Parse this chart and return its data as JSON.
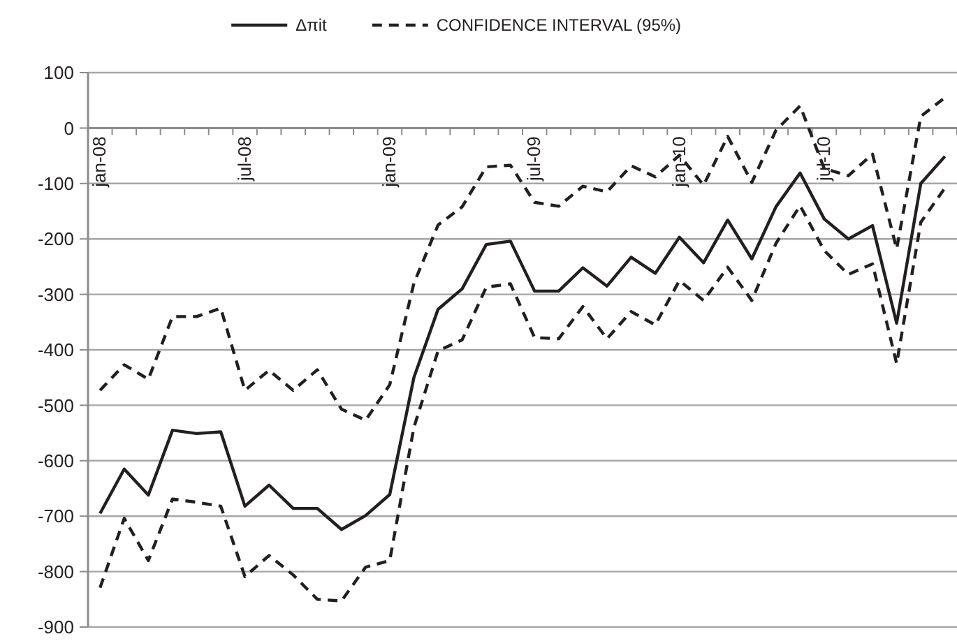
{
  "chart_data": {
    "type": "line",
    "categories": [
      "jan-08",
      null,
      null,
      null,
      null,
      null,
      "jul-08",
      null,
      null,
      null,
      null,
      null,
      "jan-09",
      null,
      null,
      null,
      null,
      null,
      "jul-09",
      null,
      null,
      null,
      null,
      null,
      "jan-10",
      null,
      null,
      null,
      null,
      null,
      "jul-10",
      null,
      null,
      null,
      null,
      null
    ],
    "series": [
      {
        "name": "Δπit",
        "color": "#231f20",
        "line_style": "solid",
        "values": [
          -695,
          -615,
          -662,
          -545,
          -551,
          -548,
          -682,
          -644,
          -686,
          -686,
          -724,
          -699,
          -661,
          -450,
          -327,
          -290,
          -210,
          -204,
          -294,
          -294,
          -252,
          -285,
          -233,
          -262,
          -197,
          -243,
          -166,
          -236,
          -142,
          -81,
          -164,
          -200,
          -176,
          -352,
          -100,
          -51
        ]
      },
      {
        "name": "CONFIDENCE INTERVAL (95%)",
        "color": "#231f20",
        "line_style": "dashed",
        "values": [
          -473,
          -427,
          -453,
          -340,
          -340,
          -325,
          -473,
          -437,
          -473,
          -436,
          -507,
          -527,
          -463,
          -280,
          -175,
          -142,
          -70,
          -67,
          -134,
          -141,
          -105,
          -115,
          -68,
          -88,
          -49,
          -103,
          -15,
          -98,
          -4,
          40,
          -73,
          -86,
          -47,
          -218,
          21,
          55
        ]
      },
      {
        "color": "#231f20",
        "line_style": "dashed",
        "values": [
          -829,
          -704,
          -780,
          -669,
          -675,
          -682,
          -809,
          -771,
          -806,
          -850,
          -853,
          -792,
          -780,
          -540,
          -402,
          -382,
          -287,
          -281,
          -378,
          -380,
          -322,
          -380,
          -331,
          -355,
          -275,
          -311,
          -251,
          -311,
          -208,
          -140,
          -221,
          -264,
          -245,
          -425,
          -170,
          -108
        ]
      }
    ],
    "ylim": [
      -900,
      100
    ],
    "yticks": [
      -900,
      -800,
      -700,
      -600,
      -500,
      -400,
      -300,
      -200,
      -100,
      0,
      100
    ],
    "grid": "y",
    "legend": "top"
  }
}
